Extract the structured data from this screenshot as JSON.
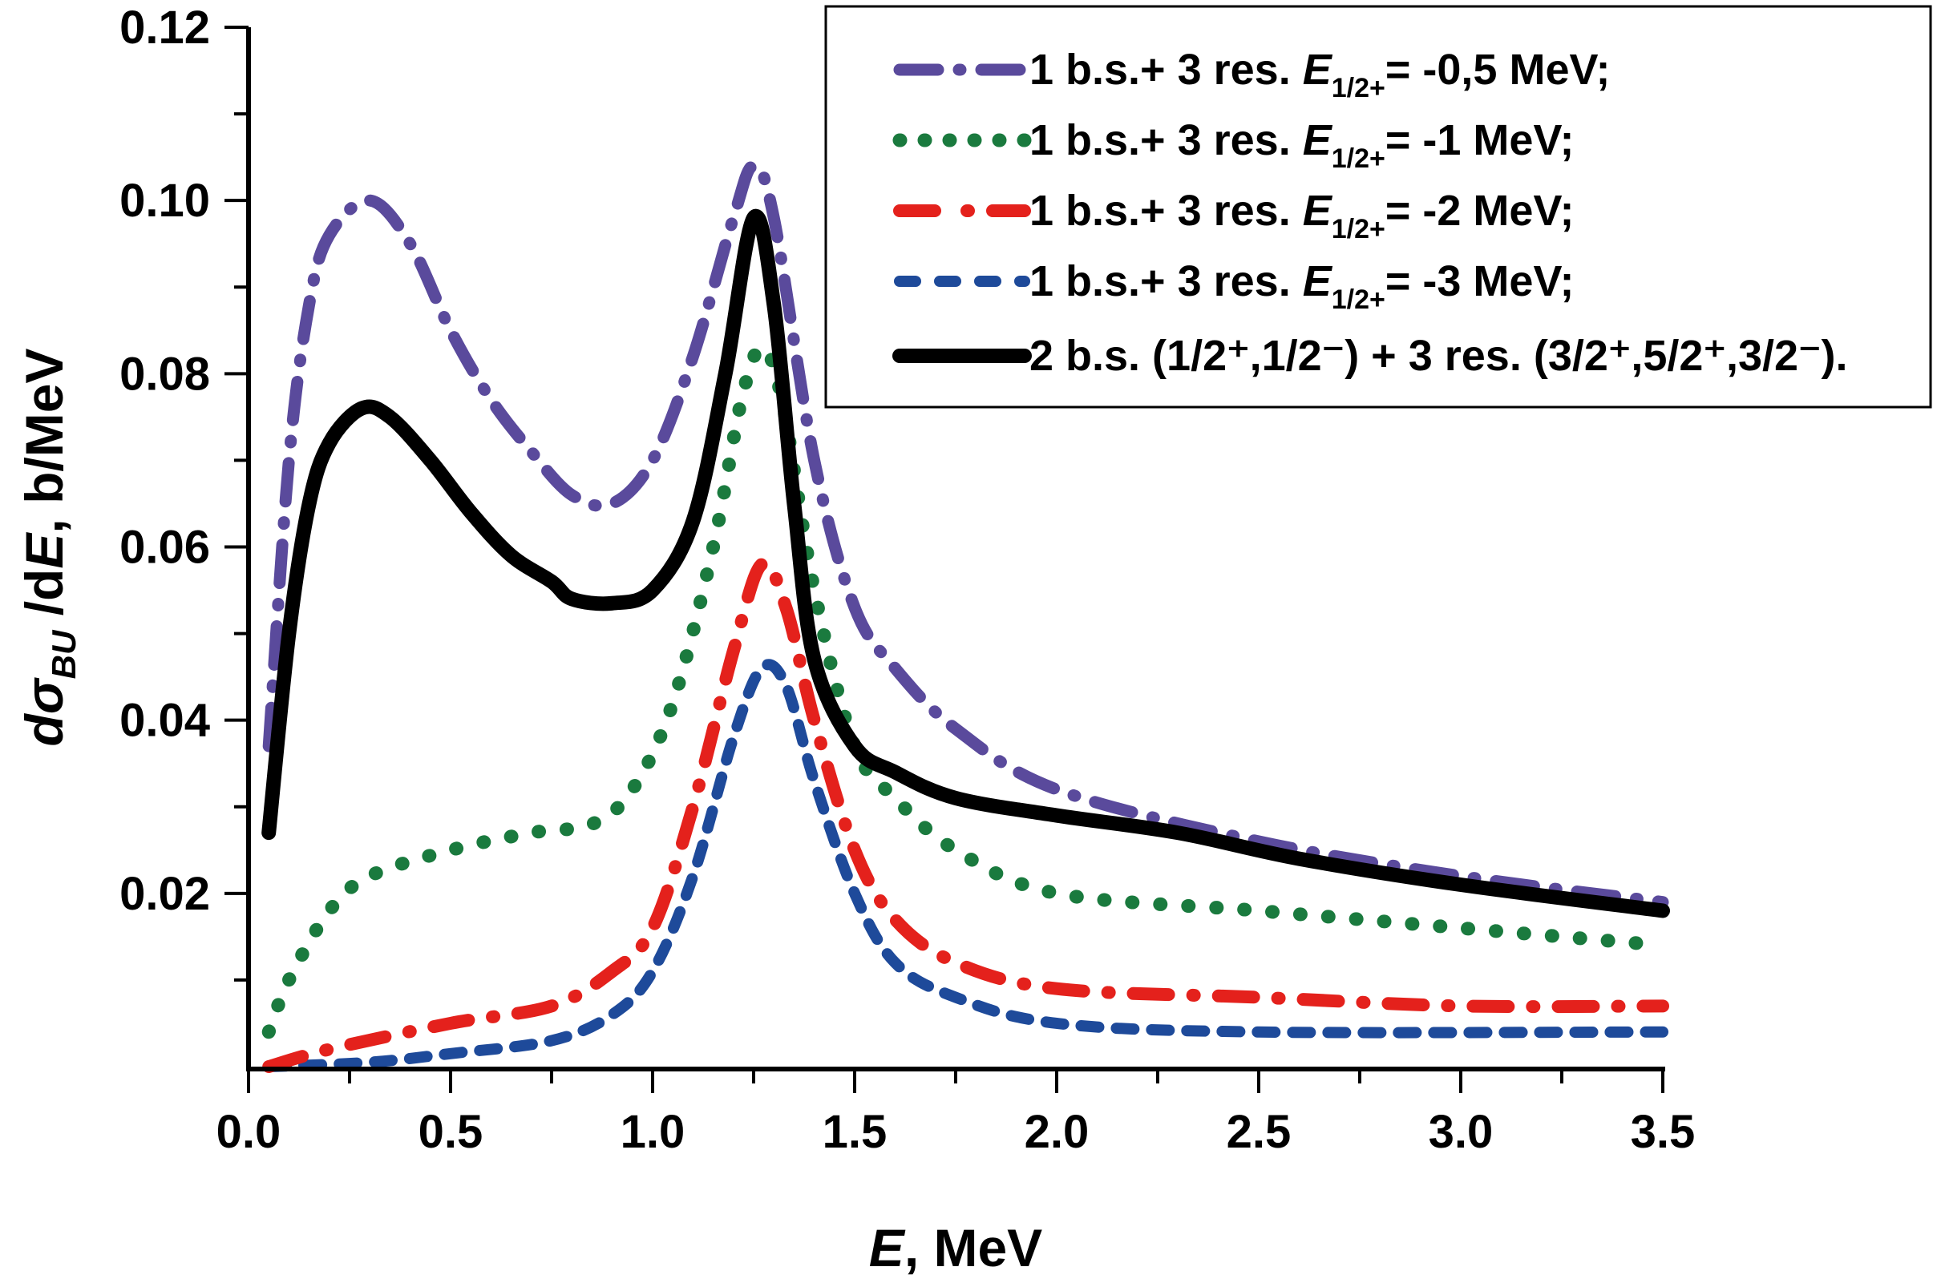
{
  "chart_data": {
    "type": "line",
    "title": "",
    "xlabel": {
      "italic": "E",
      "rest": ", MeV"
    },
    "ylabel": {
      "d1": "d",
      "sigma": "σ",
      "sub": "BU",
      "rest1": " /d",
      "italicE": "E",
      "rest2": ", b/MeV"
    },
    "xlim": [
      0.0,
      3.5
    ],
    "ylim": [
      0.0,
      0.12
    ],
    "xticks": [
      "0.0",
      "0.5",
      "1.0",
      "1.5",
      "2.0",
      "2.5",
      "3.0",
      "3.5"
    ],
    "xtick_values": [
      0,
      0.5,
      1.0,
      1.5,
      2.0,
      2.5,
      3.0,
      3.5
    ],
    "yticks": [
      "0.02",
      "0.04",
      "0.06",
      "0.08",
      "0.10",
      "0.12"
    ],
    "ytick_values": [
      0.02,
      0.04,
      0.06,
      0.08,
      0.1,
      0.12
    ],
    "grid": false,
    "legend_position": "top-right",
    "series": [
      {
        "name": "1 b.s.+ 3 res. E1/2+= -0,5 MeV;",
        "legend": {
          "pre": "1 b.s.+ 3 res. ",
          "E": "E",
          "sub": "1/2+",
          "post": "= -0,5 MeV;"
        },
        "color": "#5a4a9c",
        "style": "dash-dot",
        "x": [
          0.05,
          0.1,
          0.15,
          0.2,
          0.3,
          0.4,
          0.5,
          0.6,
          0.7,
          0.8,
          0.9,
          1.0,
          1.1,
          1.2,
          1.25,
          1.3,
          1.4,
          1.5,
          1.6,
          1.75,
          2.0,
          2.5,
          3.0,
          3.5
        ],
        "y": [
          0.037,
          0.07,
          0.088,
          0.096,
          0.1,
          0.095,
          0.085,
          0.077,
          0.071,
          0.066,
          0.065,
          0.07,
          0.082,
          0.098,
          0.104,
          0.098,
          0.07,
          0.053,
          0.046,
          0.039,
          0.032,
          0.026,
          0.022,
          0.019
        ]
      },
      {
        "name": "1 b.s.+ 3 res. E1/2+= -1 MeV;",
        "legend": {
          "pre": "1 b.s.+ 3 res. ",
          "E": "E",
          "sub": "1/2+",
          "post": "= -1 MeV;"
        },
        "color": "#1a7a3e",
        "style": "dotted",
        "x": [
          0.05,
          0.1,
          0.2,
          0.3,
          0.5,
          0.7,
          0.85,
          0.95,
          1.05,
          1.15,
          1.22,
          1.27,
          1.32,
          1.4,
          1.5,
          1.6,
          1.75,
          2.0,
          2.5,
          3.0,
          3.5
        ],
        "y": [
          0.004,
          0.01,
          0.018,
          0.022,
          0.025,
          0.027,
          0.028,
          0.032,
          0.042,
          0.06,
          0.077,
          0.083,
          0.077,
          0.055,
          0.037,
          0.031,
          0.025,
          0.02,
          0.018,
          0.016,
          0.014
        ]
      },
      {
        "name": "1 b.s.+ 3 res. E1/2+= -2 MeV;",
        "legend": {
          "pre": "1 b.s.+ 3 res. ",
          "E": "E",
          "sub": "1/2+",
          "post": "= -2 MeV;"
        },
        "color": "#e4211c",
        "style": "dash-dot-sparse",
        "x": [
          0.05,
          0.2,
          0.5,
          0.75,
          0.9,
          1.0,
          1.1,
          1.2,
          1.27,
          1.33,
          1.4,
          1.5,
          1.6,
          1.75,
          2.0,
          2.5,
          3.0,
          3.5
        ],
        "y": [
          0.0,
          0.002,
          0.005,
          0.007,
          0.011,
          0.016,
          0.03,
          0.048,
          0.058,
          0.053,
          0.04,
          0.025,
          0.017,
          0.012,
          0.009,
          0.008,
          0.007,
          0.007
        ]
      },
      {
        "name": "1 b.s.+ 3 res. E1/2+= -3 MeV;",
        "legend": {
          "pre": "1 b.s.+ 3 res. ",
          "E": "E",
          "sub": "1/2+",
          "post": "= -3 MeV;"
        },
        "color": "#1e4a9a",
        "style": "dashed",
        "x": [
          0.05,
          0.3,
          0.5,
          0.75,
          0.9,
          1.0,
          1.1,
          1.2,
          1.27,
          1.33,
          1.4,
          1.5,
          1.6,
          1.75,
          2.0,
          2.5,
          3.5
        ],
        "y": [
          0.0,
          0.0005,
          0.0015,
          0.003,
          0.006,
          0.011,
          0.022,
          0.038,
          0.046,
          0.044,
          0.033,
          0.02,
          0.012,
          0.008,
          0.005,
          0.004,
          0.004
        ]
      },
      {
        "name": "2 b.s. (1/2+,1/2-) + 3 res. (3/2+,5/2+,3/2-).",
        "legend": {
          "text": "2 b.s. (1/2⁺,1/2⁻) + 3 res. (3/2⁺,5/2⁺,3/2⁻)."
        },
        "color": "#000000",
        "style": "solid",
        "x": [
          0.05,
          0.1,
          0.15,
          0.2,
          0.28,
          0.35,
          0.45,
          0.55,
          0.65,
          0.75,
          0.8,
          0.9,
          1.0,
          1.1,
          1.18,
          1.25,
          1.3,
          1.35,
          1.4,
          1.5,
          1.6,
          1.75,
          2.0,
          2.3,
          2.6,
          3.0,
          3.5
        ],
        "y": [
          0.027,
          0.05,
          0.065,
          0.072,
          0.076,
          0.075,
          0.07,
          0.064,
          0.059,
          0.056,
          0.054,
          0.0535,
          0.055,
          0.063,
          0.08,
          0.098,
          0.088,
          0.065,
          0.047,
          0.037,
          0.034,
          0.031,
          0.029,
          0.027,
          0.024,
          0.021,
          0.018
        ]
      }
    ]
  }
}
